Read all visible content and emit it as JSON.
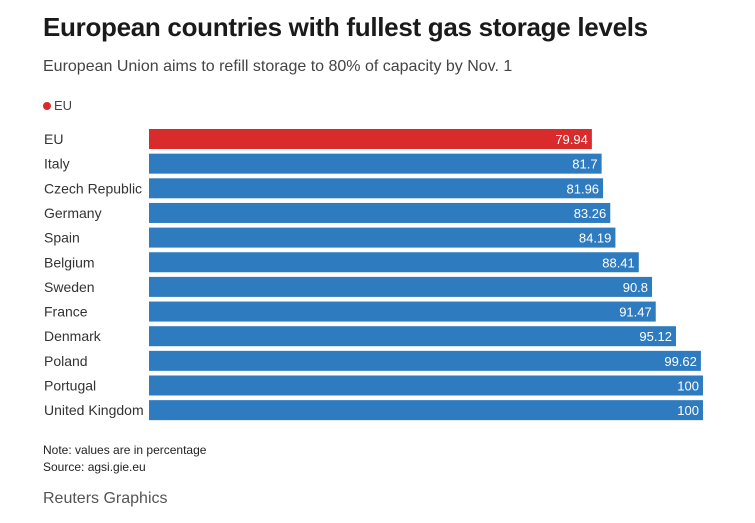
{
  "title": "European countries with fullest gas storage levels",
  "subtitle": "European Union aims to refill storage to 80% of capacity by Nov. 1",
  "legend": {
    "label": "EU",
    "color": "#d92b2b"
  },
  "colors": {
    "highlight": "#d92b2b",
    "default": "#2e7bbf",
    "value_text": "#ffffff",
    "label_text": "#333333"
  },
  "chart_data": {
    "type": "bar",
    "orientation": "horizontal",
    "title": "European countries with fullest gas storage levels",
    "subtitle": "European Union aims to refill storage to 80% of capacity by Nov. 1",
    "xlabel": "",
    "ylabel": "",
    "unit": "percentage",
    "categories": [
      "EU",
      "Italy",
      "Czech Republic",
      "Germany",
      "Spain",
      "Belgium",
      "Sweden",
      "France",
      "Denmark",
      "Poland",
      "Portugal",
      "United Kingdom"
    ],
    "values": [
      79.94,
      81.7,
      81.96,
      83.26,
      84.19,
      88.41,
      90.8,
      91.47,
      95.12,
      99.62,
      100,
      100
    ],
    "value_labels": [
      "79.94",
      "81.7",
      "81.96",
      "83.26",
      "84.19",
      "88.41",
      "90.8",
      "91.47",
      "95.12",
      "99.62",
      "100",
      "100"
    ],
    "highlight": [
      "EU"
    ],
    "xlim": [
      0,
      100
    ],
    "grid": false,
    "legend": [
      {
        "label": "EU",
        "color": "#d92b2b"
      }
    ]
  },
  "footer": {
    "note": "Note: values are in percentage",
    "source": "Source: agsi.gie.eu",
    "credit": "Reuters Graphics"
  }
}
